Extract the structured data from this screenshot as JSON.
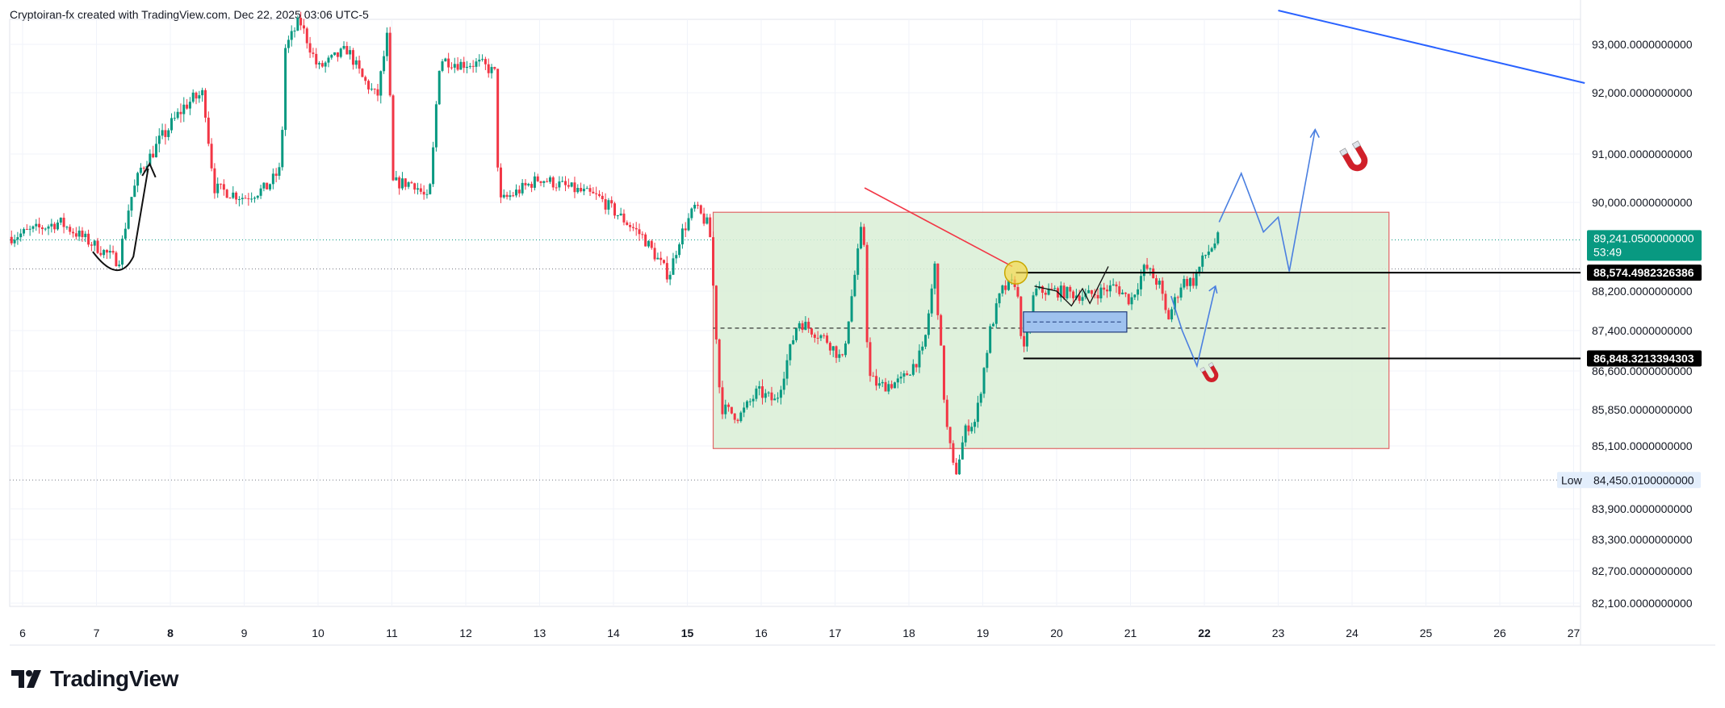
{
  "header": {
    "attribution": "Cryptoiran-fx created with TradingView.com, Dec 22, 2025 03:06 UTC-5"
  },
  "footer": {
    "brand": "TradingView"
  },
  "colors": {
    "up": "#089981",
    "down": "#f23645",
    "zone": "#d9eed6",
    "zone_border": "#e06666",
    "projection": "#4a7fe0",
    "trend": "#2962ff",
    "label_bg": "#000000",
    "price_tag": "#089981"
  },
  "chart_data": {
    "type": "candlestick",
    "ylim": [
      81800,
      93700
    ],
    "x_ticks": [
      {
        "label": "6",
        "day": 6
      },
      {
        "label": "7",
        "day": 7
      },
      {
        "label": "8",
        "day": 8,
        "bold": true
      },
      {
        "label": "9",
        "day": 9
      },
      {
        "label": "10",
        "day": 10
      },
      {
        "label": "11",
        "day": 11
      },
      {
        "label": "12",
        "day": 12
      },
      {
        "label": "13",
        "day": 13
      },
      {
        "label": "14",
        "day": 14
      },
      {
        "label": "15",
        "day": 15,
        "bold": true
      },
      {
        "label": "16",
        "day": 16
      },
      {
        "label": "17",
        "day": 17
      },
      {
        "label": "18",
        "day": 18
      },
      {
        "label": "19",
        "day": 19
      },
      {
        "label": "20",
        "day": 20
      },
      {
        "label": "21",
        "day": 21
      },
      {
        "label": "22",
        "day": 22,
        "bold": true
      },
      {
        "label": "23",
        "day": 23
      },
      {
        "label": "24",
        "day": 24
      },
      {
        "label": "25",
        "day": 25
      },
      {
        "label": "26",
        "day": 26
      },
      {
        "label": "27",
        "day": 27
      }
    ],
    "y_ticks": [
      {
        "label": "93,000.0000000000",
        "value": 93000
      },
      {
        "label": "92,000.0000000000",
        "value": 92000
      },
      {
        "label": "91,000.0000000000",
        "value": 91000
      },
      {
        "label": "90,000.0000000000",
        "value": 90000
      },
      {
        "label": "88,200.0000000000",
        "value": 88200
      },
      {
        "label": "87,400.0000000000",
        "value": 87400
      },
      {
        "label": "86,600.0000000000",
        "value": 86600
      },
      {
        "label": "85,850.0000000000",
        "value": 85850
      },
      {
        "label": "85,100.0000000000",
        "value": 85100
      },
      {
        "label": "83,900.0000000000",
        "value": 83900
      },
      {
        "label": "83,300.0000000000",
        "value": 83300
      },
      {
        "label": "82,700.0000000000",
        "value": 82700
      },
      {
        "label": "82,100.0000000000",
        "value": 82100
      }
    ],
    "price_tag": {
      "price": "89,241.0500000000",
      "countdown": "53:49",
      "value": 89241
    },
    "levels": [
      {
        "label": "88,574.4982326386",
        "value": 88574
      },
      {
        "label": "86,848.3213394303",
        "value": 86848
      }
    ],
    "low": {
      "tag": "Low",
      "label": "84,450.0100000000",
      "value": 84450
    },
    "range_box": {
      "x0": 15.35,
      "x1": 24.5,
      "y0": 85050,
      "y1": 89800
    },
    "mid_line": 87450,
    "ref_line": 89240,
    "ref_line2": 88650,
    "anchors": [
      {
        "day": 5.85,
        "value": 89300
      },
      {
        "day": 6.5,
        "value": 89600
      },
      {
        "day": 7.0,
        "value": 89100
      },
      {
        "day": 7.3,
        "value": 88800
      },
      {
        "day": 7.45,
        "value": 90000
      },
      {
        "day": 7.6,
        "value": 90700
      },
      {
        "day": 7.85,
        "value": 91200
      },
      {
        "day": 8.2,
        "value": 91800
      },
      {
        "day": 8.45,
        "value": 92000
      },
      {
        "day": 8.6,
        "value": 90300
      },
      {
        "day": 9.0,
        "value": 90100
      },
      {
        "day": 9.3,
        "value": 90300
      },
      {
        "day": 9.5,
        "value": 90700
      },
      {
        "day": 9.55,
        "value": 92900
      },
      {
        "day": 9.75,
        "value": 93500
      },
      {
        "day": 10.0,
        "value": 92500
      },
      {
        "day": 10.2,
        "value": 92700
      },
      {
        "day": 10.4,
        "value": 92900
      },
      {
        "day": 10.6,
        "value": 92300
      },
      {
        "day": 10.8,
        "value": 91900
      },
      {
        "day": 10.95,
        "value": 93300
      },
      {
        "day": 11.0,
        "value": 90400
      },
      {
        "day": 11.3,
        "value": 90400
      },
      {
        "day": 11.5,
        "value": 90000
      },
      {
        "day": 11.65,
        "value": 92700
      },
      {
        "day": 11.9,
        "value": 92600
      },
      {
        "day": 12.2,
        "value": 92600
      },
      {
        "day": 12.4,
        "value": 92400
      },
      {
        "day": 12.45,
        "value": 90000
      },
      {
        "day": 13.0,
        "value": 90500
      },
      {
        "day": 13.4,
        "value": 90300
      },
      {
        "day": 13.8,
        "value": 90100
      },
      {
        "day": 14.1,
        "value": 89700
      },
      {
        "day": 14.4,
        "value": 89300
      },
      {
        "day": 14.75,
        "value": 88500
      },
      {
        "day": 14.9,
        "value": 89300
      },
      {
        "day": 15.1,
        "value": 89900
      },
      {
        "day": 15.3,
        "value": 89500
      },
      {
        "day": 15.45,
        "value": 85900
      },
      {
        "day": 15.7,
        "value": 85700
      },
      {
        "day": 15.95,
        "value": 86200
      },
      {
        "day": 16.2,
        "value": 86000
      },
      {
        "day": 16.5,
        "value": 87600
      },
      {
        "day": 16.9,
        "value": 87200
      },
      {
        "day": 17.1,
        "value": 86800
      },
      {
        "day": 17.38,
        "value": 89700
      },
      {
        "day": 17.45,
        "value": 86500
      },
      {
        "day": 17.6,
        "value": 86300
      },
      {
        "day": 17.9,
        "value": 86400
      },
      {
        "day": 18.2,
        "value": 87000
      },
      {
        "day": 18.35,
        "value": 88700
      },
      {
        "day": 18.5,
        "value": 85600
      },
      {
        "day": 18.62,
        "value": 84500
      },
      {
        "day": 18.78,
        "value": 85500
      },
      {
        "day": 18.9,
        "value": 85600
      },
      {
        "day": 19.1,
        "value": 87400
      },
      {
        "day": 19.25,
        "value": 88200
      },
      {
        "day": 19.45,
        "value": 88400
      },
      {
        "day": 19.55,
        "value": 86900
      },
      {
        "day": 19.7,
        "value": 88200
      },
      {
        "day": 20.0,
        "value": 88200
      },
      {
        "day": 20.4,
        "value": 88100
      },
      {
        "day": 20.8,
        "value": 88300
      },
      {
        "day": 21.0,
        "value": 88000
      },
      {
        "day": 21.2,
        "value": 88700
      },
      {
        "day": 21.4,
        "value": 88300
      },
      {
        "day": 21.5,
        "value": 87600
      },
      {
        "day": 21.7,
        "value": 88400
      },
      {
        "day": 21.85,
        "value": 88400
      },
      {
        "day": 22.0,
        "value": 88900
      },
      {
        "day": 22.2,
        "value": 89300
      }
    ],
    "projection_up": [
      {
        "day": 22.2,
        "value": 89600
      },
      {
        "day": 22.5,
        "value": 90600
      },
      {
        "day": 22.8,
        "value": 89400
      },
      {
        "day": 23.0,
        "value": 89700
      },
      {
        "day": 23.15,
        "value": 88600
      },
      {
        "day": 23.5,
        "value": 91400
      }
    ],
    "projection_down": [
      {
        "day": 21.55,
        "value": 88100
      },
      {
        "day": 21.7,
        "value": 87400
      },
      {
        "day": 21.9,
        "value": 86700
      },
      {
        "day": 22.15,
        "value": 88300
      }
    ],
    "trend_line": [
      {
        "day": 23.0,
        "value": 93700
      },
      {
        "day": 27.15,
        "value": 92200
      }
    ],
    "red_line": [
      {
        "day": 17.4,
        "value": 90300
      },
      {
        "day": 19.4,
        "value": 88700
      }
    ]
  }
}
